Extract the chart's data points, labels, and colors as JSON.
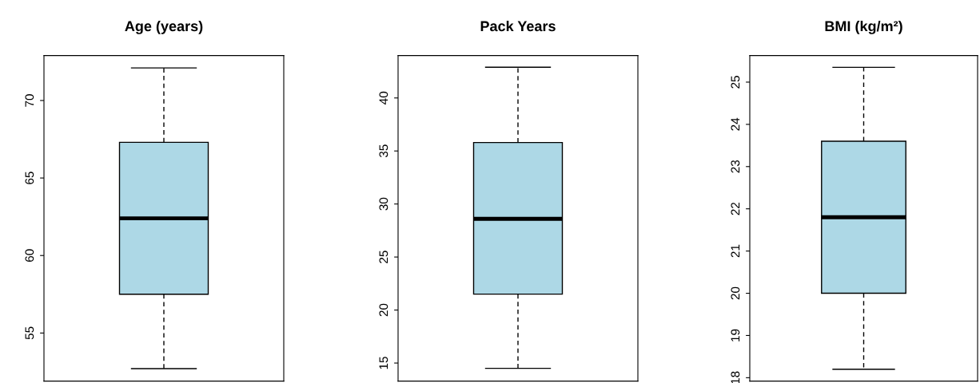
{
  "chart_data": [
    {
      "type": "box",
      "title": "Age (years)",
      "categories": [
        null
      ],
      "color": "#add8e6",
      "ylim": [
        51.9,
        72.9
      ],
      "yticks": [
        55,
        60,
        65,
        70
      ],
      "boxes": [
        {
          "low": 52.7,
          "q1": 57.5,
          "median": 62.4,
          "q3": 67.3,
          "high": 72.1
        }
      ]
    },
    {
      "type": "box",
      "title": "Pack Years",
      "categories": [
        null
      ],
      "color": "#add8e6",
      "ylim": [
        13.3,
        44.0
      ],
      "yticks": [
        15,
        20,
        25,
        30,
        35,
        40
      ],
      "boxes": [
        {
          "low": 14.5,
          "q1": 21.5,
          "median": 28.6,
          "q3": 35.8,
          "high": 42.9
        }
      ]
    },
    {
      "type": "box",
      "title": "BMI (kg/m²)",
      "categories": [
        null
      ],
      "color": "#add8e6",
      "ylim": [
        17.92,
        25.63
      ],
      "yticks": [
        18,
        19,
        20,
        21,
        22,
        23,
        24,
        25
      ],
      "boxes": [
        {
          "low": 18.2,
          "q1": 20.0,
          "median": 21.8,
          "q3": 23.6,
          "high": 25.35
        }
      ]
    }
  ]
}
